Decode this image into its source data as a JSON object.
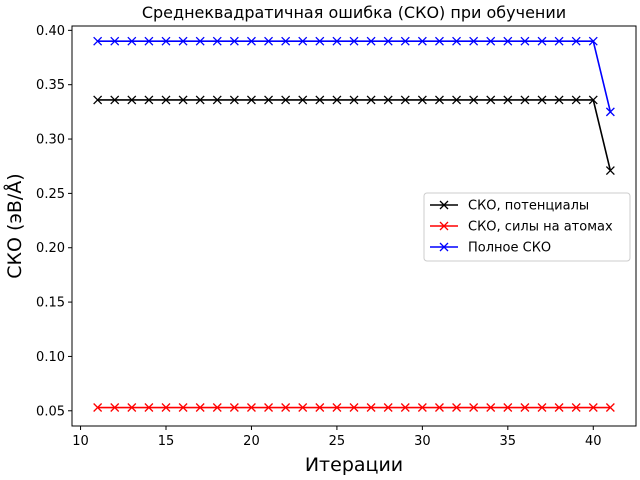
{
  "chart_data": {
    "type": "line",
    "title": "Среднеквадратичная ошибка (СКО) при обучении",
    "xlabel": "Итерации",
    "ylabel": "СКО (эВ/Å)",
    "xlim": [
      9.5,
      42.5
    ],
    "ylim": [
      0.036,
      0.404
    ],
    "xticks": [
      10,
      15,
      20,
      25,
      30,
      35,
      40
    ],
    "yticks": [
      0.05,
      0.1,
      0.15,
      0.2,
      0.25,
      0.3,
      0.35,
      0.4
    ],
    "x": [
      11,
      12,
      13,
      14,
      15,
      16,
      17,
      18,
      19,
      20,
      21,
      22,
      23,
      24,
      25,
      26,
      27,
      28,
      29,
      30,
      31,
      32,
      33,
      34,
      35,
      36,
      37,
      38,
      39,
      40,
      41
    ],
    "series": [
      {
        "name": "СКО, потенциалы",
        "color": "#000000",
        "marker": "x",
        "values": [
          0.336,
          0.336,
          0.336,
          0.336,
          0.336,
          0.336,
          0.336,
          0.336,
          0.336,
          0.336,
          0.336,
          0.336,
          0.336,
          0.336,
          0.336,
          0.336,
          0.336,
          0.336,
          0.336,
          0.336,
          0.336,
          0.336,
          0.336,
          0.336,
          0.336,
          0.336,
          0.336,
          0.336,
          0.336,
          0.336,
          0.271
        ]
      },
      {
        "name": "СКО, силы на атомах",
        "color": "#ff0000",
        "marker": "x",
        "values": [
          0.053,
          0.053,
          0.053,
          0.053,
          0.053,
          0.053,
          0.053,
          0.053,
          0.053,
          0.053,
          0.053,
          0.053,
          0.053,
          0.053,
          0.053,
          0.053,
          0.053,
          0.053,
          0.053,
          0.053,
          0.053,
          0.053,
          0.053,
          0.053,
          0.053,
          0.053,
          0.053,
          0.053,
          0.053,
          0.053,
          0.053
        ]
      },
      {
        "name": "Полное СКО",
        "color": "#0000ff",
        "marker": "x",
        "values": [
          0.39,
          0.39,
          0.39,
          0.39,
          0.39,
          0.39,
          0.39,
          0.39,
          0.39,
          0.39,
          0.39,
          0.39,
          0.39,
          0.39,
          0.39,
          0.39,
          0.39,
          0.39,
          0.39,
          0.39,
          0.39,
          0.39,
          0.39,
          0.39,
          0.39,
          0.39,
          0.39,
          0.39,
          0.39,
          0.39,
          0.325
        ]
      }
    ],
    "legend_position": "center-right",
    "grid": false
  }
}
